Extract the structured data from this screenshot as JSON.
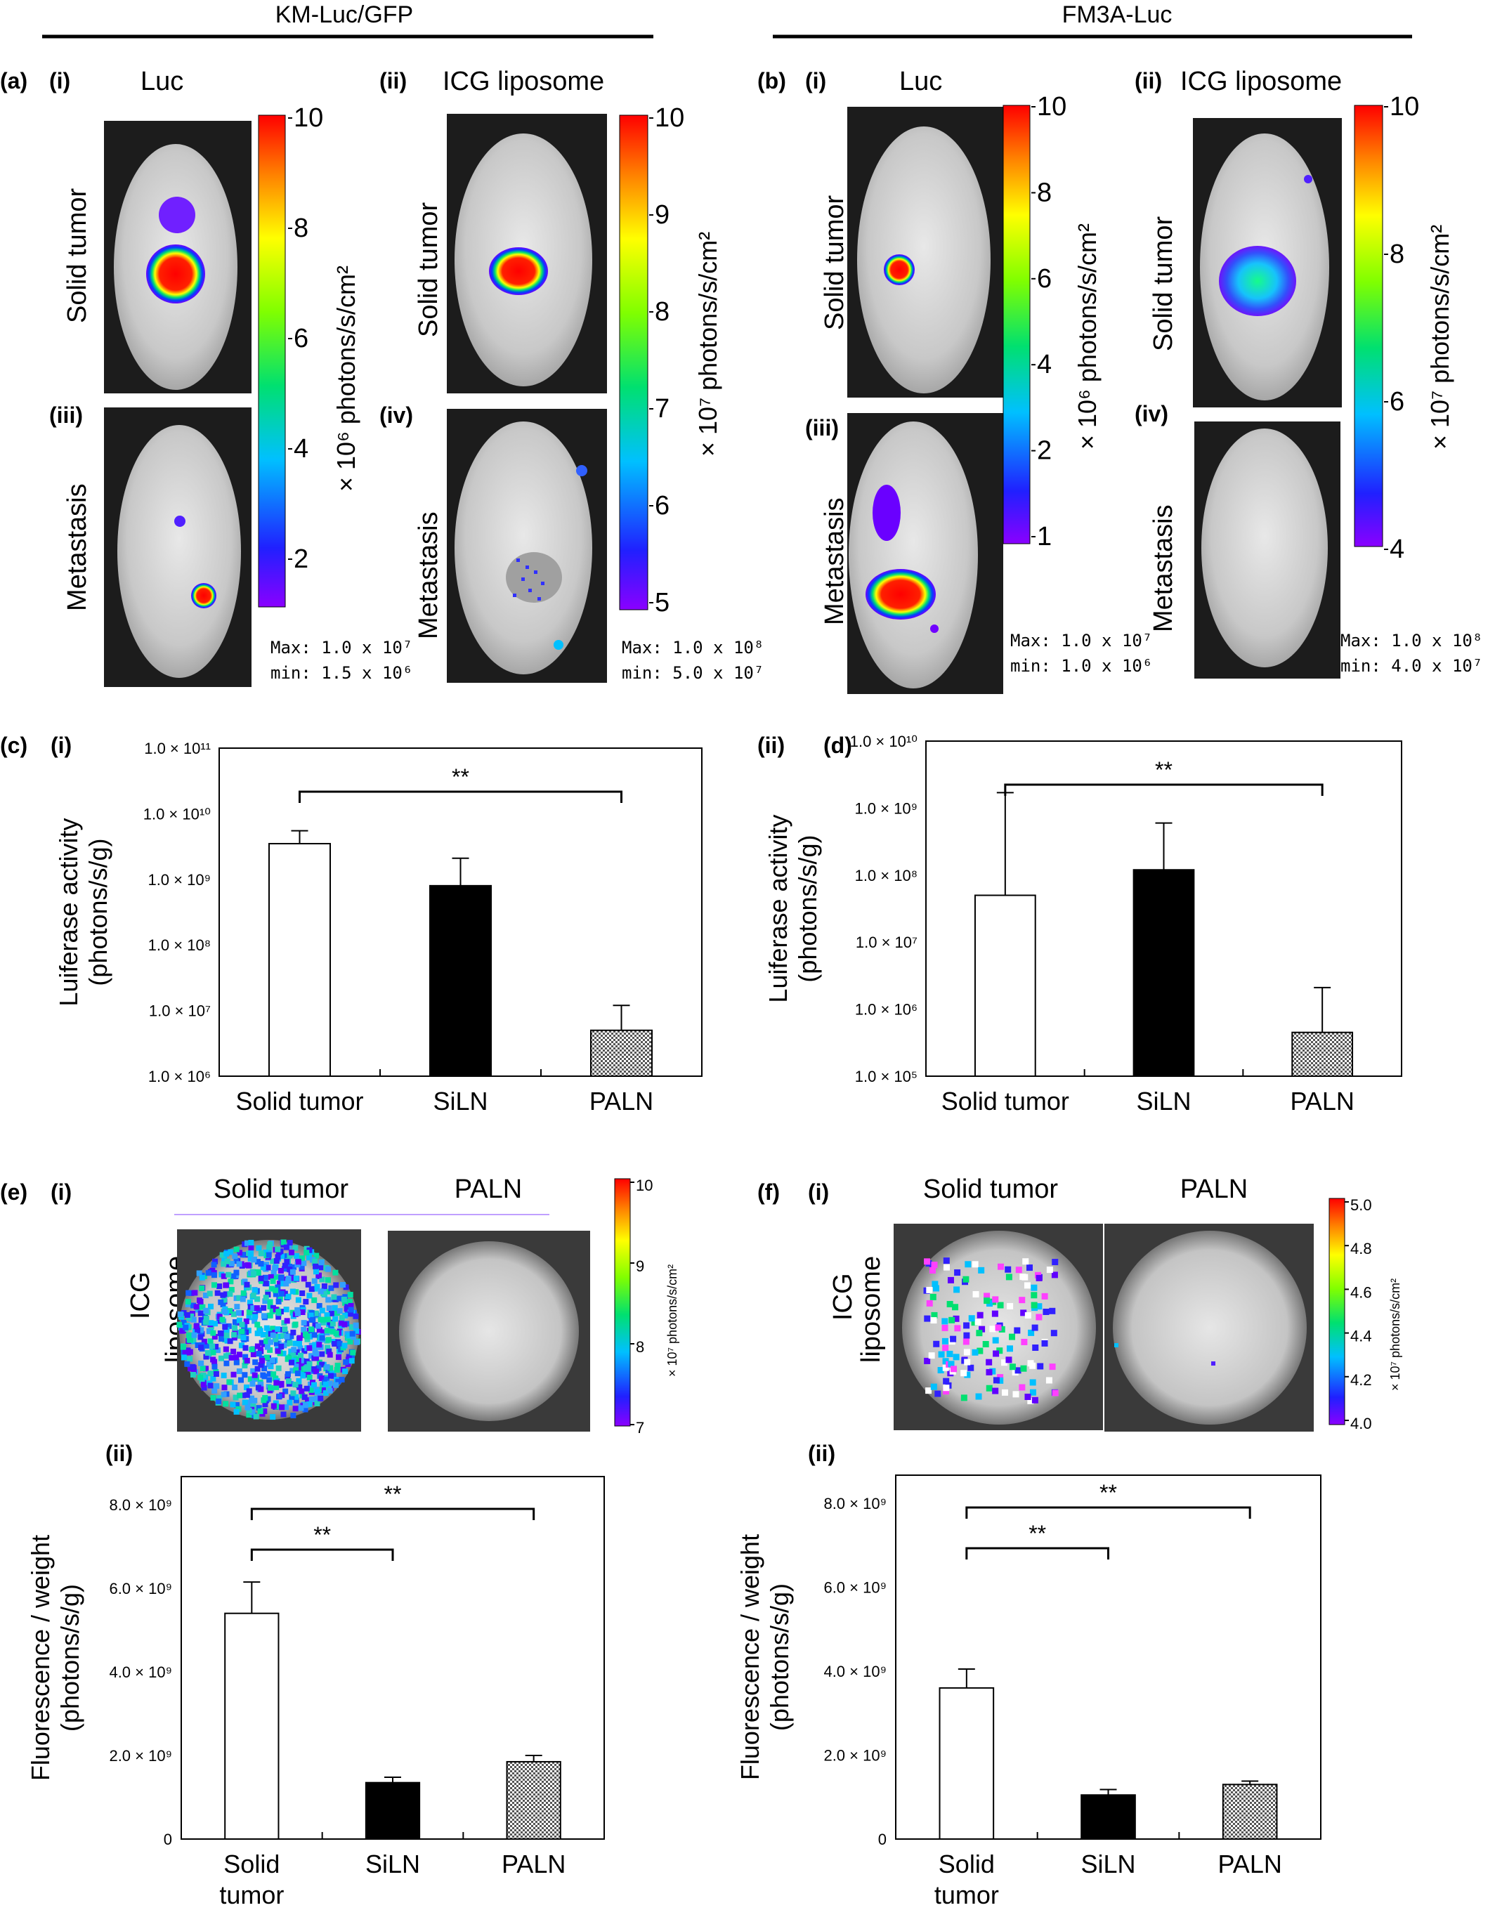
{
  "headers": {
    "left": "KM-Luc/GFP",
    "right": "FM3A-Luc"
  },
  "imaging": {
    "a": {
      "panel": "(a)",
      "i": {
        "tag": "(i)",
        "label": "Luc"
      },
      "ii": {
        "tag": "(ii)",
        "label": "ICG liposome"
      },
      "iii": {
        "tag": "(iii)"
      },
      "iv": {
        "tag": "(iv)"
      },
      "row_solid": "Solid tumor",
      "row_meta": "Metastasis",
      "scale1": {
        "ticks": [
          "10",
          "8",
          "6",
          "4",
          "2"
        ],
        "unit": "× 10⁶ photons/s/cm²",
        "max": "Max: 1.0 x 10⁷",
        "min": "min: 1.5 x 10⁶"
      },
      "scale2": {
        "ticks": [
          "10",
          "9",
          "8",
          "7",
          "6",
          "5"
        ],
        "unit": "× 10⁷ photons/s/cm²",
        "max": "Max: 1.0 x 10⁸",
        "min": "min: 5.0 x 10⁷"
      }
    },
    "b": {
      "panel": "(b)",
      "i": {
        "tag": "(i)",
        "label": "Luc"
      },
      "ii": {
        "tag": "(ii)",
        "label": "ICG liposome"
      },
      "iii": {
        "tag": "(iii)"
      },
      "iv": {
        "tag": "(iv)"
      },
      "row_solid": "Solid tumor",
      "row_meta": "Metastasis",
      "scale1": {
        "ticks": [
          "10",
          "8",
          "6",
          "4",
          "2",
          "1"
        ],
        "unit": "× 10⁶ photons/s/cm²",
        "max": "Max: 1.0 x 10⁷",
        "min": "min: 1.0 x 10⁶"
      },
      "scale2": {
        "ticks": [
          "10",
          "8",
          "6",
          "4"
        ],
        "unit": "× 10⁷ photons/s/cm²",
        "max": "Max: 1.0 x 10⁸",
        "min": "min: 4.0 x 10⁷"
      }
    },
    "e": {
      "panel": "(e)",
      "tag": "(i)",
      "col1": "Solid tumor",
      "col2": "PALN",
      "row1": "ICG",
      "row2": "liposome",
      "ticks": [
        "10",
        "9",
        "8",
        "7"
      ],
      "unit": "× 10⁷ photons/s/cm²"
    },
    "f": {
      "panel": "(f)",
      "tag": "(i)",
      "col1": "Solid tumor",
      "col2": "PALN",
      "row1": "ICG",
      "row2": "liposome",
      "ticks": [
        "5.0",
        "4.8",
        "4.6",
        "4.4",
        "4.2",
        "4.0"
      ],
      "unit": "× 10⁷ photons/s/cm²"
    }
  },
  "colors": {
    "open": "#ffffff",
    "solid": "#000000",
    "hatch": "#555555"
  },
  "chart_data": [
    {
      "id": "c",
      "panel": "(c)",
      "tag": "(i)",
      "type": "bar",
      "scale": "log",
      "ylabel1": "Luiferase activity",
      "ylabel2": "(photons/s/g)",
      "categories": [
        "Solid tumor",
        "SiLN",
        "PALN"
      ],
      "values": [
        3500000000,
        800000000,
        5000000
      ],
      "errors": [
        5500000000,
        2100000000,
        12000000
      ],
      "ylim": [
        1000000,
        100000000000
      ],
      "ticks": [
        "1.0 × 10⁶",
        "1.0 × 10⁷",
        "1.0 × 10⁸",
        "1.0 × 10⁹",
        "1.0 × 10¹⁰",
        "1.0 × 10¹¹"
      ],
      "significance": [
        {
          "from": 0,
          "to": 2,
          "label": "**"
        }
      ]
    },
    {
      "id": "d",
      "panel": "(d)",
      "tag": "(ii)",
      "type": "bar",
      "scale": "log",
      "ylabel1": "Luiferase activity",
      "ylabel2": "(photons/s/g)",
      "categories": [
        "Solid tumor",
        "SiLN",
        "PALN"
      ],
      "values": [
        50000000,
        120000000,
        450000
      ],
      "errors": [
        1700000000,
        600000000,
        2100000
      ],
      "ylim": [
        100000,
        10000000000
      ],
      "ticks": [
        "1.0 × 10⁵",
        "1.0 × 10⁶",
        "1.0 × 10⁷",
        "1.0 × 10⁸",
        "1.0 × 10⁹",
        "1.0 × 10¹⁰"
      ],
      "significance": [
        {
          "from": 0,
          "to": 2,
          "label": "**"
        }
      ]
    },
    {
      "id": "e2",
      "panel": "",
      "tag": "(ii)",
      "type": "bar",
      "scale": "linear",
      "ylabel1": "Fluorescence / weight",
      "ylabel2": "(photons/s/g)",
      "categories": [
        "Solid",
        "SiLN",
        "PALN"
      ],
      "cat2": [
        "tumor",
        "",
        ""
      ],
      "values": [
        5400000000,
        1350000000,
        1850000000
      ],
      "errors": [
        6150000000,
        1480000000,
        2000000000
      ],
      "ylim": [
        0,
        8000000000
      ],
      "ticks": [
        "0",
        "2.0 × 10⁹",
        "4.0 × 10⁹",
        "6.0 × 10⁹",
        "8.0 × 10⁹"
      ],
      "significance": [
        {
          "from": 0,
          "to": 1,
          "label": "**"
        },
        {
          "from": 0,
          "to": 2,
          "label": "**"
        }
      ]
    },
    {
      "id": "f2",
      "panel": "",
      "tag": "(ii)",
      "type": "bar",
      "scale": "linear",
      "ylabel1": "Fluorescence / weight",
      "ylabel2": "(photons/s/g)",
      "categories": [
        "Solid",
        "SiLN",
        "PALN"
      ],
      "cat2": [
        "tumor",
        "",
        ""
      ],
      "values": [
        3600000000,
        1050000000,
        1300000000
      ],
      "errors": [
        4050000000,
        1180000000,
        1380000000
      ],
      "ylim": [
        0,
        8000000000
      ],
      "ticks": [
        "0",
        "2.0 × 10⁹",
        "4.0 × 10⁹",
        "6.0 × 10⁹",
        "8.0 × 10⁹"
      ],
      "significance": [
        {
          "from": 0,
          "to": 1,
          "label": "**"
        },
        {
          "from": 0,
          "to": 2,
          "label": "**"
        }
      ]
    }
  ]
}
